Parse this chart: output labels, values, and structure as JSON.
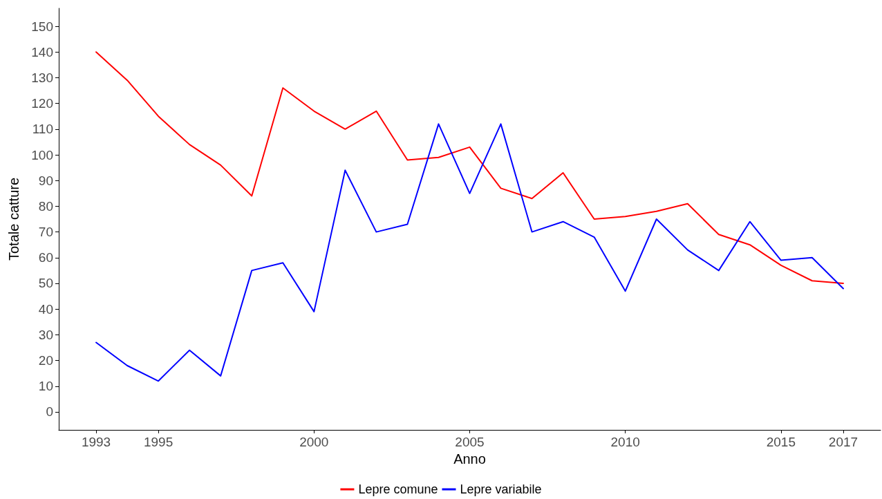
{
  "chart_data": {
    "type": "line",
    "xlabel": "Anno",
    "ylabel": "Totale catture",
    "x": [
      1993,
      1994,
      1995,
      1996,
      1997,
      1998,
      1999,
      2000,
      2001,
      2002,
      2003,
      2004,
      2005,
      2006,
      2007,
      2008,
      2009,
      2010,
      2011,
      2012,
      2013,
      2014,
      2015,
      2016,
      2017
    ],
    "series": [
      {
        "name": "Lepre comune",
        "color": "#ff0000",
        "values": [
          140,
          129,
          115,
          104,
          96,
          84,
          126,
          117,
          110,
          117,
          98,
          99,
          103,
          87,
          83,
          93,
          75,
          76,
          78,
          81,
          69,
          65,
          57,
          51,
          50
        ]
      },
      {
        "name": "Lepre variabile",
        "color": "#0000ff",
        "values": [
          27,
          18,
          12,
          24,
          14,
          55,
          58,
          39,
          94,
          70,
          73,
          112,
          85,
          112,
          70,
          74,
          68,
          47,
          75,
          63,
          55,
          74,
          59,
          60,
          48
        ]
      }
    ],
    "xlim": [
      1991.8,
      2018.2
    ],
    "xticks": [
      1993,
      1995,
      2000,
      2005,
      2010,
      2015,
      2017
    ],
    "ylim": [
      -7,
      157
    ],
    "yticks": [
      0,
      10,
      20,
      30,
      40,
      50,
      60,
      70,
      80,
      90,
      100,
      110,
      120,
      130,
      140,
      150
    ],
    "grid": false,
    "legend": "bottom",
    "marker": "none",
    "line_style": "solid"
  }
}
